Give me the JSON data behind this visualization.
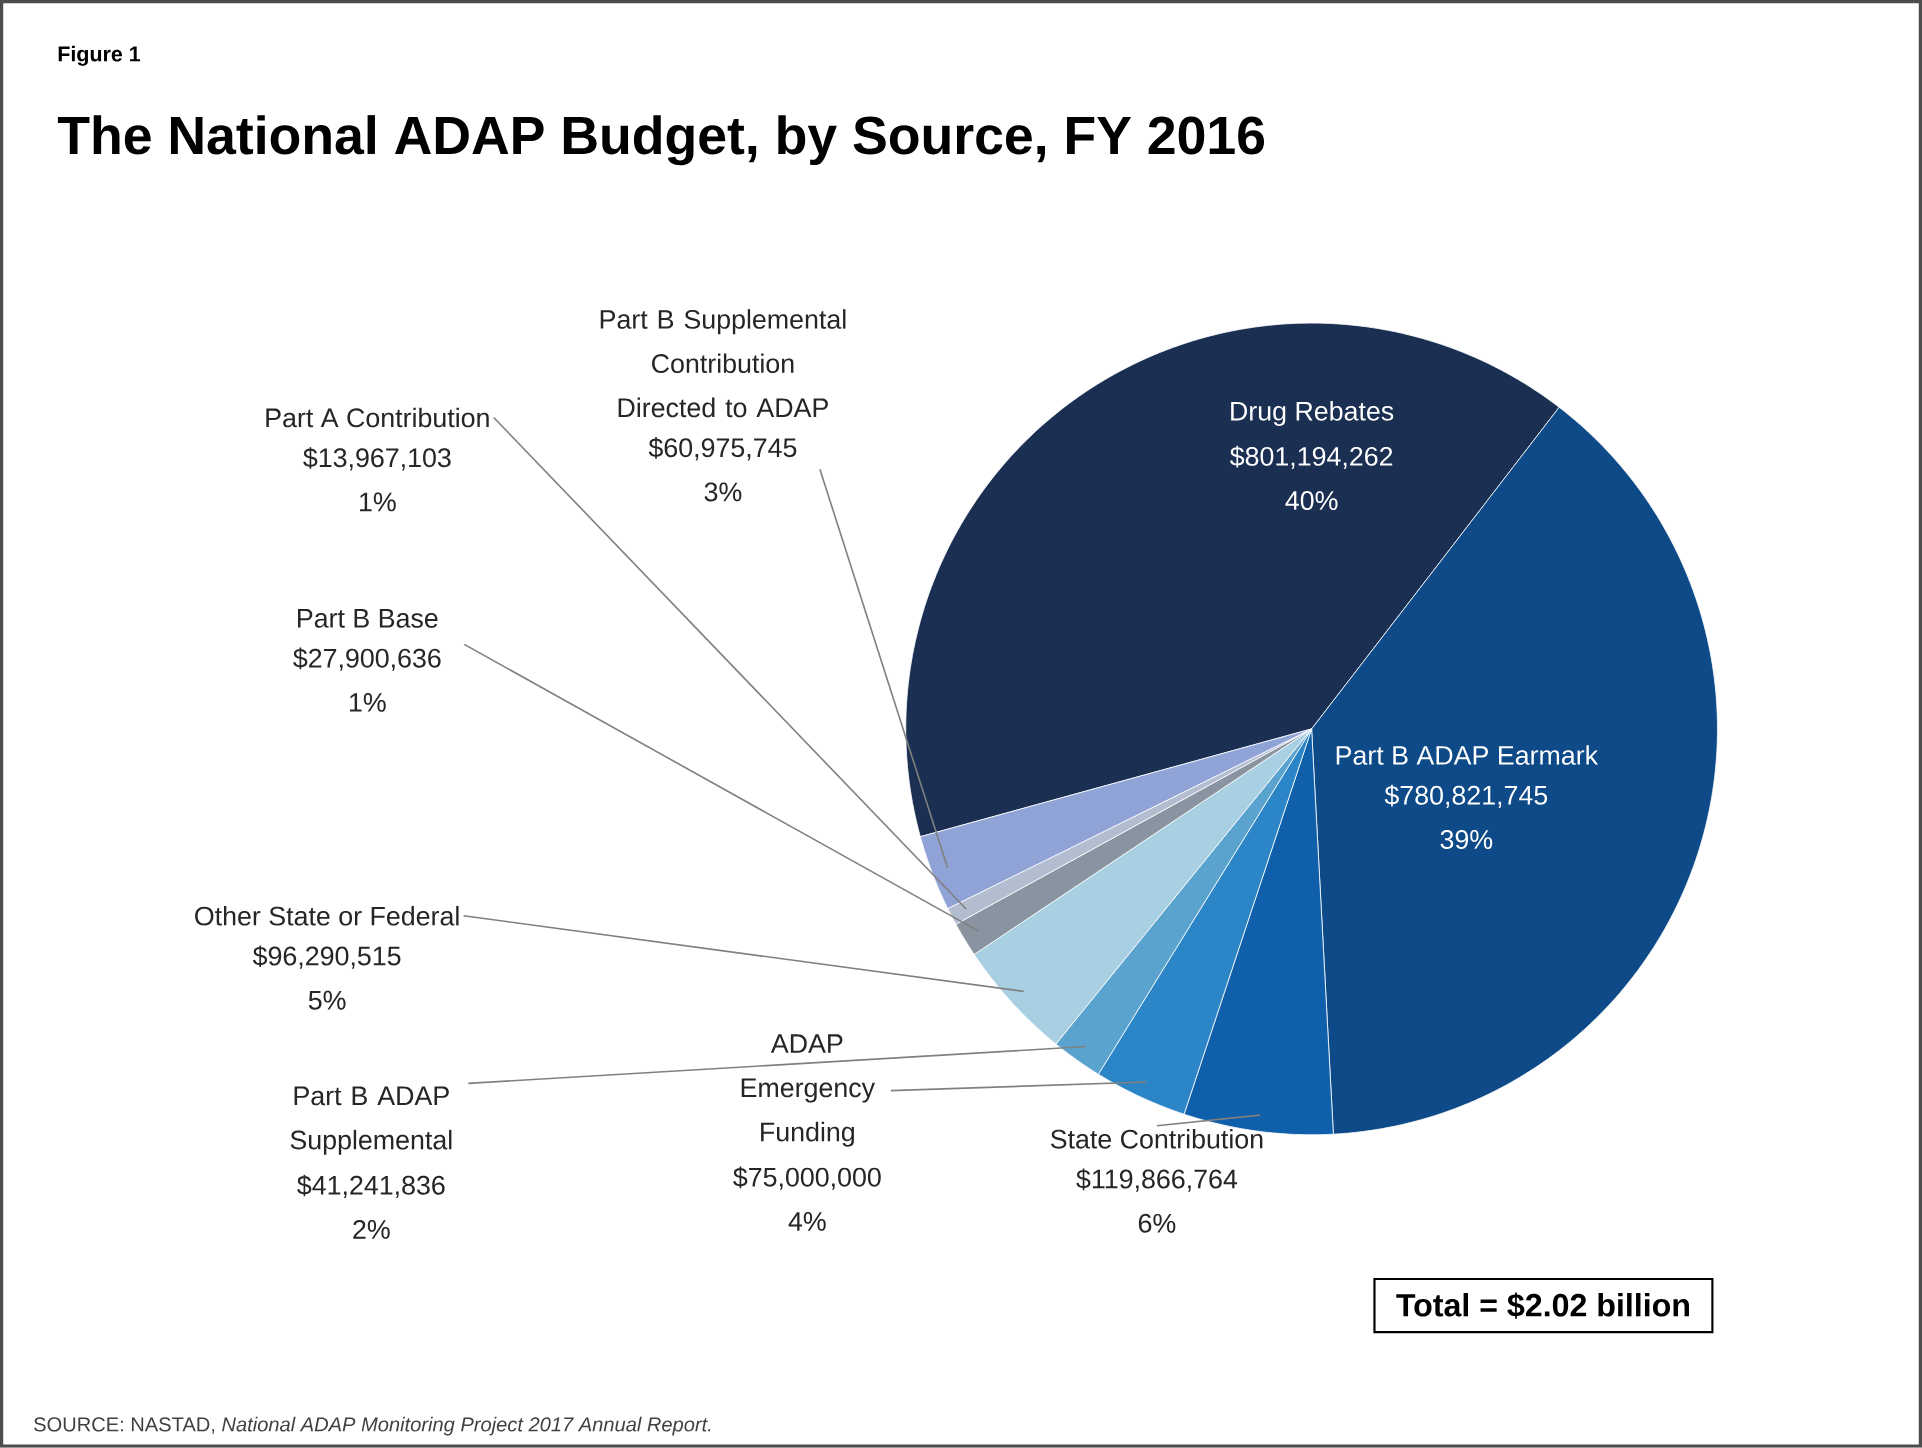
{
  "chart_data": {
    "type": "pie",
    "title": "The National ADAP Budget, by Source, FY 2016",
    "categories": [
      "Drug Rebates",
      "Part B ADAP Earmark",
      "State Contribution",
      "ADAP Emergency Funding",
      "Part B ADAP Supplemental",
      "Other State or Federal",
      "Part B Base",
      "Part A Contribution",
      "Part B Supplemental Contribution Directed to ADAP"
    ],
    "values": [
      801194262,
      780821745,
      119866764,
      75000000,
      41241836,
      96290515,
      27900636,
      13967103,
      60975745
    ],
    "value_labels": [
      "$801,194,262 40%",
      "$780,821,745 39%",
      "$119,866,764 6%",
      "$75,000,000 4%",
      "$41,241,836 2%",
      "$96,290,515 5%",
      "$27,900,636 1%",
      "$13,967,103 1%",
      "$60,975,745 3%"
    ],
    "colors": [
      "#1a2f52",
      "#0d4a87",
      "#0f5fab",
      "#2c85c7",
      "#5aa3cf",
      "#a9cfe3",
      "#8a93a0",
      "#b3bdd0",
      "#8fa3d6"
    ],
    "annotations": [
      "Figure 1",
      "Total = $2.02 billion",
      "SOURCE: NASTAD, *National ADAP Monitoring Project 2017 Annual Report.*"
    ]
  }
}
